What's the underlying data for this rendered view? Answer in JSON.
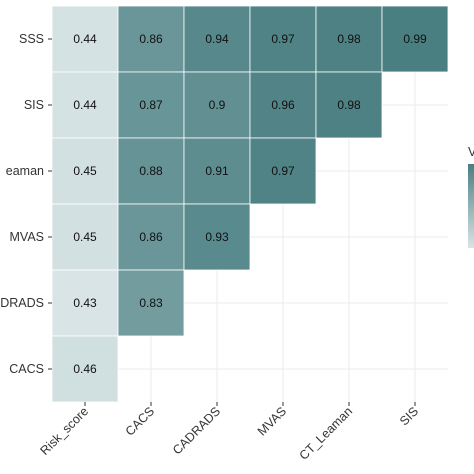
{
  "chart_data": {
    "type": "heatmap",
    "title": "",
    "xlabel": "",
    "ylabel": "",
    "x_categories": [
      "Risk_score",
      "CACS",
      "CADRADS",
      "MVAS",
      "CT_Leaman",
      "SIS"
    ],
    "y_categories_top_to_bottom": [
      "SSS",
      "SIS",
      "CT_Leaman",
      "MVAS",
      "CADRADS",
      "CACS"
    ],
    "y_tick_labels_visible": [
      "SSS",
      "SIS",
      "eaman",
      "MVAS",
      "DRADS",
      "CACS"
    ],
    "legend_title_visible": "V",
    "grid": true,
    "legend_position": "right",
    "color_low": "#d8e4e5",
    "color_high": "#4a7f82",
    "cells": [
      {
        "x": "Risk_score",
        "y": "SSS",
        "value": 0.44
      },
      {
        "x": "CACS",
        "y": "SSS",
        "value": 0.86
      },
      {
        "x": "CADRADS",
        "y": "SSS",
        "value": 0.94
      },
      {
        "x": "MVAS",
        "y": "SSS",
        "value": 0.97
      },
      {
        "x": "CT_Leaman",
        "y": "SSS",
        "value": 0.98
      },
      {
        "x": "SIS",
        "y": "SSS",
        "value": 0.99
      },
      {
        "x": "Risk_score",
        "y": "SIS",
        "value": 0.44
      },
      {
        "x": "CACS",
        "y": "SIS",
        "value": 0.87
      },
      {
        "x": "CADRADS",
        "y": "SIS",
        "value": 0.9
      },
      {
        "x": "MVAS",
        "y": "SIS",
        "value": 0.96
      },
      {
        "x": "CT_Leaman",
        "y": "SIS",
        "value": 0.98
      },
      {
        "x": "Risk_score",
        "y": "CT_Leaman",
        "value": 0.45
      },
      {
        "x": "CACS",
        "y": "CT_Leaman",
        "value": 0.88
      },
      {
        "x": "CADRADS",
        "y": "CT_Leaman",
        "value": 0.91
      },
      {
        "x": "MVAS",
        "y": "CT_Leaman",
        "value": 0.97
      },
      {
        "x": "Risk_score",
        "y": "MVAS",
        "value": 0.45
      },
      {
        "x": "CACS",
        "y": "MVAS",
        "value": 0.86
      },
      {
        "x": "CADRADS",
        "y": "MVAS",
        "value": 0.93
      },
      {
        "x": "Risk_score",
        "y": "CADRADS",
        "value": 0.43
      },
      {
        "x": "CACS",
        "y": "CADRADS",
        "value": 0.83
      },
      {
        "x": "Risk_score",
        "y": "CACS",
        "value": 0.46
      }
    ]
  }
}
